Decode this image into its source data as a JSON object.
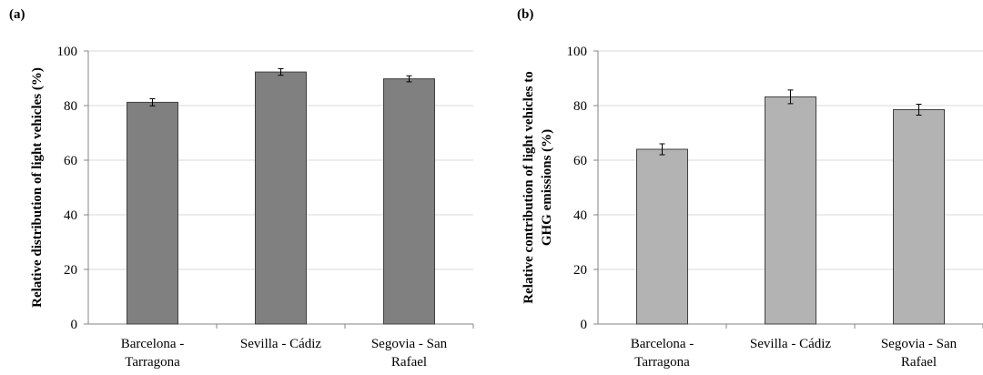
{
  "chart_data": [
    {
      "panel": "(a)",
      "type": "bar",
      "categories": [
        [
          "Barcelona -",
          "Tarragona"
        ],
        [
          "Sevilla - Cádiz"
        ],
        [
          "Segovia - San",
          "Rafael"
        ]
      ],
      "values": [
        81.2,
        92.3,
        89.8
      ],
      "errors": [
        1.3,
        1.2,
        1.1
      ],
      "ylabel": "Relative distribution of light vehicles (%)",
      "ylim": [
        0,
        100
      ],
      "yticks": [
        "0",
        "20",
        "40",
        "60",
        "80",
        "100"
      ],
      "grid": true,
      "bar_color": "#808080"
    },
    {
      "panel": "(b)",
      "type": "bar",
      "categories": [
        [
          "Barcelona -",
          "Tarragona"
        ],
        [
          "Sevilla - Cádiz"
        ],
        [
          "Segovia - San",
          "Rafael"
        ]
      ],
      "values": [
        64.0,
        83.2,
        78.5
      ],
      "errors": [
        2.0,
        2.5,
        2.0
      ],
      "ylabel": [
        "Relative contribution of light vehicles to",
        "GHG emissions (%)"
      ],
      "ylim": [
        0,
        100
      ],
      "yticks": [
        "0",
        "20",
        "40",
        "60",
        "80",
        "100"
      ],
      "grid": true,
      "bar_color": "#b3b3b3"
    }
  ]
}
